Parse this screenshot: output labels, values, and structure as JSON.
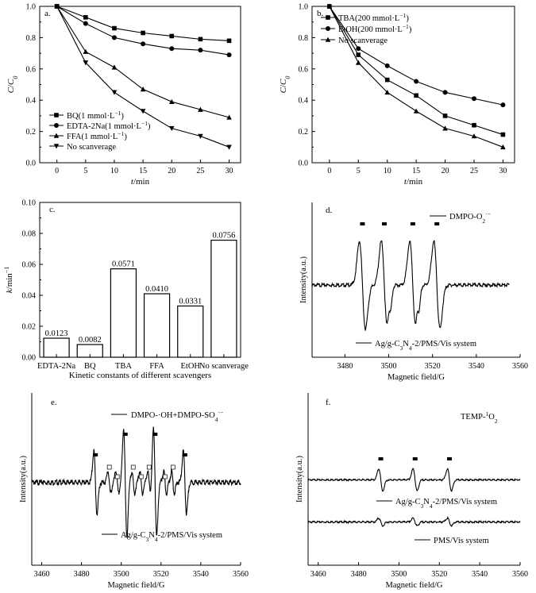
{
  "chart_data": [
    {
      "panel": "a.",
      "type": "line",
      "xlabel": "t/min",
      "ylabel": "C/C0",
      "xlim": [
        -3,
        32
      ],
      "ylim": [
        0,
        1.0
      ],
      "x_ticks": [
        0,
        5,
        10,
        15,
        20,
        25,
        30
      ],
      "y_ticks": [
        0.0,
        0.2,
        0.4,
        0.6,
        0.8,
        1.0
      ],
      "x": [
        0,
        5,
        10,
        15,
        20,
        25,
        30
      ],
      "series": [
        {
          "name": "BQ(1 mmol·L⁻¹)",
          "marker": "square",
          "values": [
            1.0,
            0.93,
            0.86,
            0.83,
            0.81,
            0.79,
            0.78
          ]
        },
        {
          "name": "EDTA-2Na(1 mmol·L⁻¹)",
          "marker": "circle",
          "values": [
            1.0,
            0.89,
            0.8,
            0.76,
            0.73,
            0.72,
            0.69
          ]
        },
        {
          "name": "FFA(1 mmol·L⁻¹)",
          "marker": "triangle-up",
          "values": [
            1.0,
            0.71,
            0.61,
            0.47,
            0.39,
            0.34,
            0.29
          ]
        },
        {
          "name": "No scanverage",
          "marker": "triangle-down",
          "values": [
            1.0,
            0.64,
            0.45,
            0.33,
            0.22,
            0.17,
            0.1
          ]
        }
      ]
    },
    {
      "panel": "b.",
      "type": "line",
      "xlabel": "t/min",
      "ylabel": "C/C0",
      "xlim": [
        -3,
        32
      ],
      "ylim": [
        0,
        1.0
      ],
      "x_ticks": [
        0,
        5,
        10,
        15,
        20,
        25,
        30
      ],
      "y_ticks": [
        0.0,
        0.2,
        0.4,
        0.6,
        0.8,
        1.0
      ],
      "x": [
        0,
        5,
        10,
        15,
        20,
        25,
        30
      ],
      "series": [
        {
          "name": "TBA(200 mmol·L⁻¹)",
          "marker": "square",
          "values": [
            1.0,
            0.69,
            0.53,
            0.43,
            0.3,
            0.24,
            0.18
          ]
        },
        {
          "name": "EtOH(200 mmol·L⁻¹)",
          "marker": "circle",
          "values": [
            1.0,
            0.73,
            0.62,
            0.52,
            0.45,
            0.41,
            0.37
          ]
        },
        {
          "name": "No scanverage",
          "marker": "triangle-up",
          "values": [
            1.0,
            0.64,
            0.45,
            0.33,
            0.22,
            0.17,
            0.1
          ]
        }
      ]
    },
    {
      "panel": "c.",
      "type": "bar",
      "xlabel": "Kinetic constants of different scavengers",
      "ylabel": "k/min⁻¹",
      "ylim": [
        0,
        0.1
      ],
      "y_ticks": [
        0.0,
        0.02,
        0.04,
        0.06,
        0.08,
        0.1
      ],
      "categories": [
        "EDTA-2Na",
        "BQ",
        "TBA",
        "FFA",
        "EtOH",
        "No scanverage"
      ],
      "values": [
        0.0123,
        0.0082,
        0.0571,
        0.041,
        0.0331,
        0.0756
      ],
      "value_labels": [
        "0.0123",
        "0.0082",
        "0.0571",
        "0.0410",
        "0.0331",
        "0.0756"
      ]
    },
    {
      "panel": "d.",
      "type": "line",
      "xlabel": "Magnetic field/G",
      "ylabel": "Intensity(a.u.)",
      "xlim": [
        3465,
        3560
      ],
      "x_ticks": [
        3480,
        3500,
        3520,
        3540,
        3560
      ],
      "legend": "DMPO-O2·⁻",
      "caption": "Ag/g-C3N4-2/PMS/Vis system",
      "peak_markers_G": [
        3488,
        3498,
        3511,
        3522
      ]
    },
    {
      "panel": "e.",
      "type": "line",
      "xlabel": "Magnetic field/G",
      "ylabel": "Intensity(a.u.)",
      "xlim": [
        3455,
        3560
      ],
      "x_ticks": [
        3460,
        3480,
        3500,
        3520,
        3540,
        3560
      ],
      "legend": "DMPO-·OH+DMPO-SO4·⁻",
      "caption": "Ag/g-C3N4-2/PMS/Vis system",
      "filled_markers_G": [
        3487,
        3502,
        3517,
        3532
      ],
      "open_markers_G": [
        3494,
        3498,
        3506,
        3510,
        3514,
        3522,
        3526
      ]
    },
    {
      "panel": "f.",
      "type": "line",
      "xlabel": "Magnetic field/G",
      "ylabel": "Intensity(a.u.)",
      "xlim": [
        3455,
        3560
      ],
      "x_ticks": [
        3460,
        3480,
        3500,
        3520,
        3540,
        3560
      ],
      "legend": "TEMP-1O2",
      "curves": [
        "Ag/g-C3N4-2/PMS/Vis system",
        "PMS/Vis system"
      ],
      "peak_markers_G": [
        3491,
        3508,
        3525
      ]
    }
  ]
}
